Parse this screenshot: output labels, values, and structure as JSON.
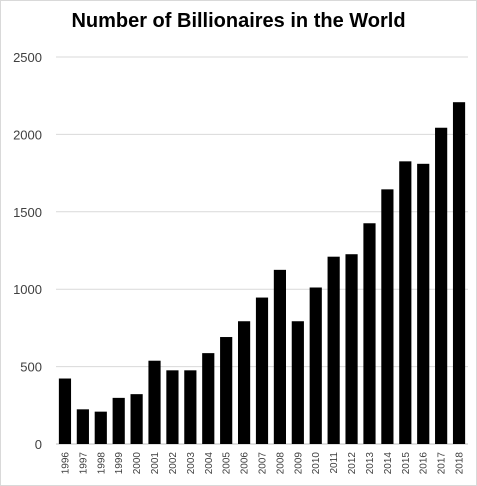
{
  "chart_data": {
    "type": "bar",
    "title": "Number of Billionaires in the World",
    "xlabel": "",
    "ylabel": "",
    "categories": [
      "1996",
      "1997",
      "1998",
      "1999",
      "2000",
      "2001",
      "2002",
      "2003",
      "2004",
      "2005",
      "2006",
      "2007",
      "2008",
      "2009",
      "2010",
      "2011",
      "2012",
      "2013",
      "2014",
      "2015",
      "2016",
      "2017",
      "2018"
    ],
    "values": [
      423,
      224,
      209,
      298,
      322,
      538,
      476,
      476,
      587,
      691,
      793,
      946,
      1125,
      793,
      1011,
      1210,
      1226,
      1426,
      1645,
      1826,
      1810,
      2043,
      2208
    ],
    "ylim": [
      0,
      2500
    ],
    "yticks": [
      0,
      500,
      1000,
      1500,
      2000,
      2500
    ],
    "grid": true,
    "bar_color": "#000000",
    "grid_color": "#d9d9d9"
  }
}
